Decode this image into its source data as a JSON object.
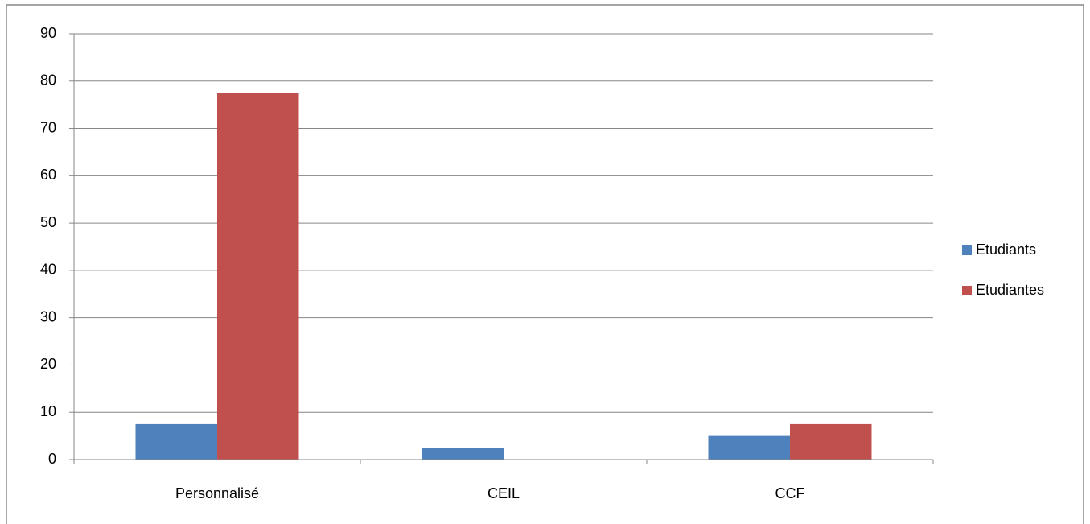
{
  "chart_data": {
    "type": "bar",
    "categories": [
      "Personnalisé",
      "CEIL",
      "CCF"
    ],
    "series": [
      {
        "name": "Etudiants",
        "color": "#4f81bd",
        "values": [
          7.5,
          2.5,
          5
        ]
      },
      {
        "name": "Etudiantes",
        "color": "#c0504d",
        "values": [
          77.5,
          0,
          7.5
        ]
      }
    ],
    "ylim": [
      0,
      90
    ],
    "yticks": [
      0,
      10,
      20,
      30,
      40,
      50,
      60,
      70,
      80,
      90
    ],
    "grid": true,
    "legend": "right"
  }
}
